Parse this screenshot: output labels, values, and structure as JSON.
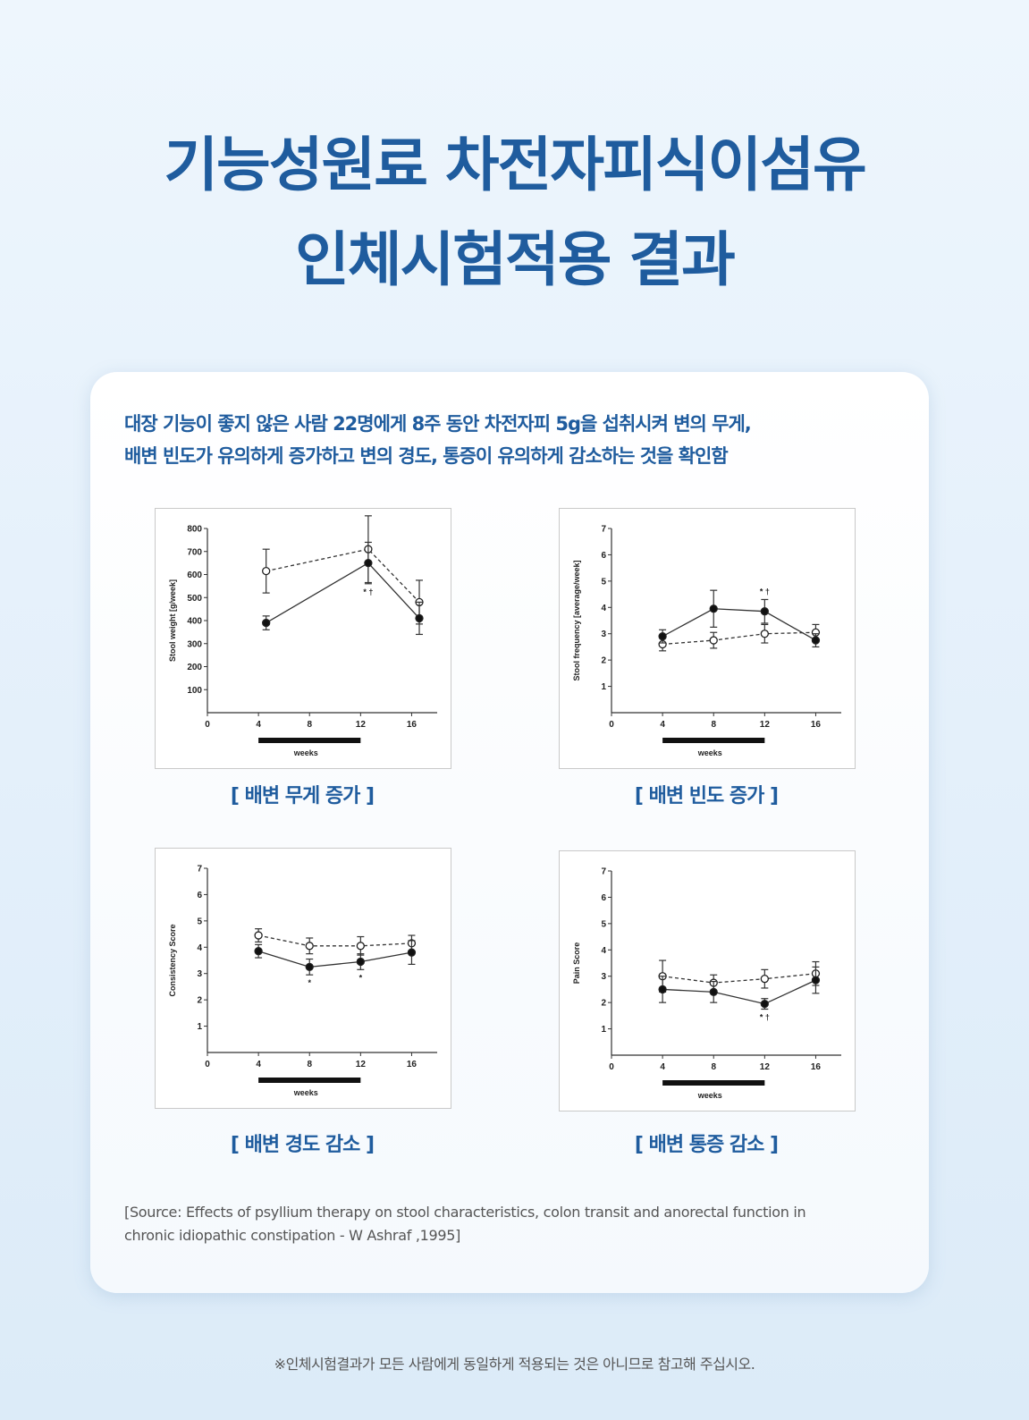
{
  "header": {
    "title_line1": "기능성원료 차전자피식이섬유",
    "title_line2": "인체시험적용 결과"
  },
  "card": {
    "lead_line1": "대장 기능이 좋지 않은 사람 22명에게 8주 동안 차전자피 5g을 섭취시켜 변의 무게,",
    "lead_line2": "배변 빈도가 유의하게 증가하고 변의 경도, 통증이 유의하게 감소하는 것을 확인함",
    "captions": [
      "[ 배변 무게 증가 ]",
      "[ 배변 빈도 증가 ]",
      "[ 배변 경도 감소 ]",
      "[ 배변 통증 감소 ]"
    ],
    "source_line1": "[Source: Effects of psyllium therapy on stool characteristics, colon transit and anorectal function in",
    "source_line2": "chronic idiopathic constipation - W Ashraf ,1995]"
  },
  "footer": {
    "note": "※인체시험결과가 모든 사람에게 동일하게 적용되는 것은 아니므로 참고해 주십시오."
  },
  "colors": {
    "accent": "#1f5c9e",
    "text": "#555555"
  },
  "chart_data": [
    {
      "type": "line",
      "title": "[ 배변 무게 증가 ]",
      "xlabel": "weeks",
      "ylabel": "Stool weight [g/week]",
      "x": [
        4,
        12,
        16
      ],
      "xticks": [
        0,
        4,
        8,
        12,
        16
      ],
      "yticks": [
        100,
        200,
        300,
        400,
        500,
        600,
        700,
        800
      ],
      "ylim": [
        0,
        800
      ],
      "treatment_bar": [
        4,
        12
      ],
      "series": [
        {
          "name": "psyllium (filled, solid)",
          "values": [
            390,
            650,
            410
          ],
          "err": [
            30,
            90,
            70
          ]
        },
        {
          "name": "placebo (open, dashed)",
          "values": [
            615,
            710,
            480
          ],
          "err": [
            95,
            145,
            95
          ]
        }
      ],
      "annotations": [
        {
          "x": 12,
          "text": "*†"
        }
      ]
    },
    {
      "type": "line",
      "title": "[ 배변 빈도 증가 ]",
      "xlabel": "weeks",
      "ylabel": "Stool frequency [average/week]",
      "x": [
        4,
        8,
        12,
        16
      ],
      "xticks": [
        0,
        4,
        8,
        12,
        16
      ],
      "yticks": [
        1,
        2,
        3,
        4,
        5,
        6,
        7
      ],
      "ylim": [
        0,
        7
      ],
      "treatment_bar": [
        4,
        12
      ],
      "series": [
        {
          "name": "psyllium (filled, solid)",
          "values": [
            2.9,
            3.95,
            3.85,
            2.75
          ],
          "err": [
            0.25,
            0.7,
            0.45,
            0.25
          ]
        },
        {
          "name": "placebo (open, dashed)",
          "values": [
            2.6,
            2.75,
            3.0,
            3.05
          ],
          "err": [
            0.25,
            0.3,
            0.35,
            0.3
          ]
        }
      ],
      "annotations": [
        {
          "x": 12,
          "text": "*†"
        }
      ]
    },
    {
      "type": "line",
      "title": "[ 배변 경도 감소 ]",
      "xlabel": "weeks",
      "ylabel": "Consistency Score",
      "x": [
        4,
        8,
        12,
        16
      ],
      "xticks": [
        0,
        4,
        8,
        12,
        16
      ],
      "yticks": [
        1,
        2,
        3,
        4,
        5,
        6,
        7
      ],
      "ylim": [
        0,
        7
      ],
      "treatment_bar": [
        4,
        12
      ],
      "series": [
        {
          "name": "psyllium (filled, solid)",
          "values": [
            3.85,
            3.25,
            3.45,
            3.8
          ],
          "err": [
            0.25,
            0.3,
            0.3,
            0.45
          ]
        },
        {
          "name": "placebo (open, dashed)",
          "values": [
            4.45,
            4.05,
            4.05,
            4.15
          ],
          "err": [
            0.25,
            0.3,
            0.35,
            0.3
          ]
        }
      ],
      "annotations": [
        {
          "x": 8,
          "text": "*"
        },
        {
          "x": 12,
          "text": "*"
        }
      ]
    },
    {
      "type": "line",
      "title": "[ 배변 통증 감소 ]",
      "xlabel": "weeks",
      "ylabel": "Pain Score",
      "x": [
        4,
        8,
        12,
        16
      ],
      "xticks": [
        0,
        4,
        8,
        12,
        16
      ],
      "yticks": [
        1,
        2,
        3,
        4,
        5,
        6,
        7
      ],
      "ylim": [
        0,
        7
      ],
      "treatment_bar": [
        4,
        12
      ],
      "series": [
        {
          "name": "psyllium (filled, solid)",
          "values": [
            2.5,
            2.4,
            1.95,
            2.85
          ],
          "err": [
            0.5,
            0.4,
            0.2,
            0.5
          ]
        },
        {
          "name": "placebo (open, dashed)",
          "values": [
            3.0,
            2.75,
            2.9,
            3.1
          ],
          "err": [
            0.6,
            0.3,
            0.35,
            0.45
          ]
        }
      ],
      "annotations": [
        {
          "x": 12,
          "text": "*†"
        }
      ]
    }
  ]
}
